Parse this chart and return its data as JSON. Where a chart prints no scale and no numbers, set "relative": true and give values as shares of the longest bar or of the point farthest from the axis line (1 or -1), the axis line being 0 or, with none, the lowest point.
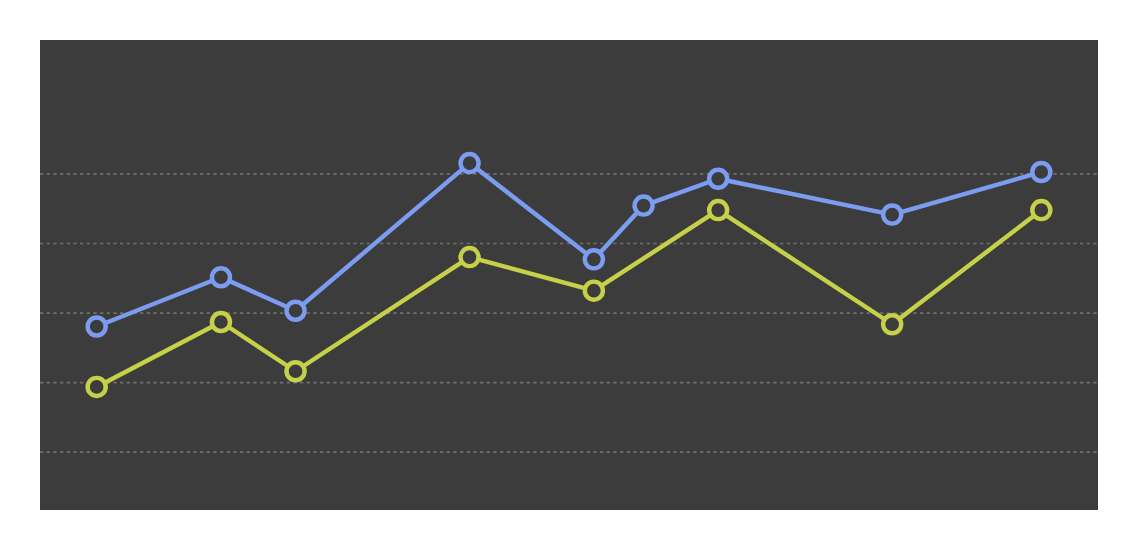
{
  "chart_data": {
    "type": "line",
    "relative": true,
    "grid": "y",
    "marker": "circle",
    "line_style": "solid",
    "categories": [
      null,
      null,
      null,
      null,
      null,
      null,
      null,
      null,
      null,
      null,
      null,
      null,
      null,
      null,
      null,
      null,
      null,
      null,
      null,
      null,
      null,
      null,
      null,
      null,
      null,
      null,
      null,
      null,
      null,
      null,
      null,
      null,
      null,
      null,
      null,
      null,
      null,
      null,
      null
    ],
    "series": [
      {
        "color": "#7b9cf0",
        "values": [
          0.27,
          null,
          null,
          null,
          null,
          0.49,
          null,
          null,
          0.34,
          null,
          null,
          null,
          null,
          null,
          null,
          1.0,
          null,
          null,
          null,
          null,
          0.57,
          null,
          0.81,
          null,
          null,
          0.93,
          null,
          null,
          null,
          null,
          null,
          null,
          0.77,
          null,
          null,
          null,
          null,
          null,
          0.96
        ]
      },
      {
        "color": "#c6d048",
        "values": [
          0,
          null,
          null,
          null,
          null,
          0.29,
          null,
          null,
          0.07,
          null,
          null,
          null,
          null,
          null,
          null,
          0.58,
          null,
          null,
          null,
          null,
          0.43,
          null,
          null,
          null,
          null,
          0.79,
          null,
          null,
          null,
          null,
          null,
          null,
          0.28,
          null,
          null,
          null,
          null,
          null,
          0.79
        ]
      }
    ]
  }
}
